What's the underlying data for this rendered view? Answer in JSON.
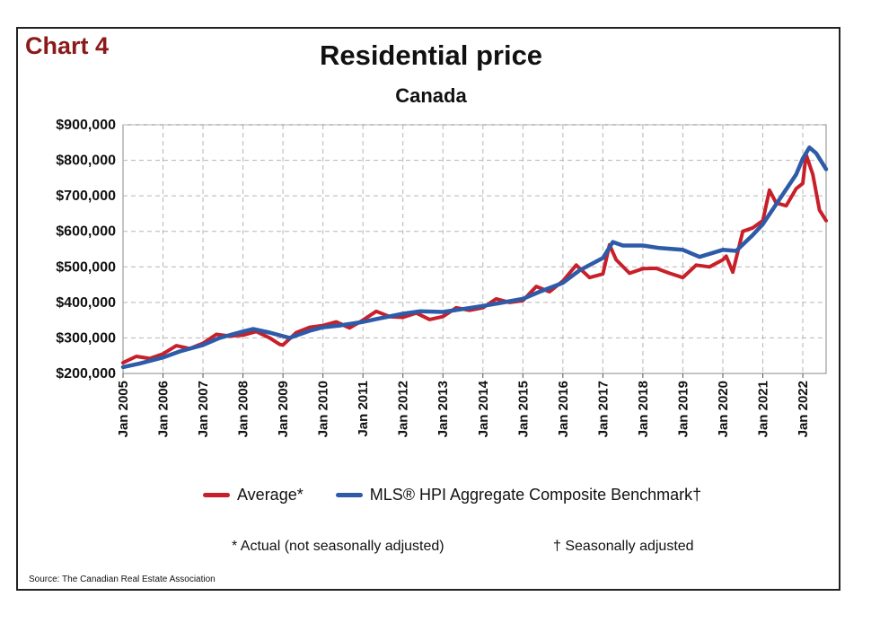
{
  "header": {
    "chart_label": "Chart 4"
  },
  "chart_data": {
    "type": "line",
    "title": "Residential price",
    "subtitle": "Canada",
    "xlabel": "",
    "ylabel": "",
    "ylim": [
      200000,
      900000
    ],
    "xlim": [
      "2005-01",
      "2022-08"
    ],
    "grid": true,
    "legend_position": "bottom",
    "y_tick_labels": [
      "$200,000",
      "$300,000",
      "$400,000",
      "$500,000",
      "$600,000",
      "$700,000",
      "$800,000",
      "$900,000"
    ],
    "y_tick_values": [
      200000,
      300000,
      400000,
      500000,
      600000,
      700000,
      800000,
      900000
    ],
    "x_tick_labels": [
      "Jan 2005",
      "Jan 2006",
      "Jan 2007",
      "Jan 2008",
      "Jan 2009",
      "Jan 2010",
      "Jan 2011",
      "Jan 2012",
      "Jan 2013",
      "Jan 2014",
      "Jan 2015",
      "Jan 2016",
      "Jan 2017",
      "Jan 2018",
      "Jan 2019",
      "Jan 2020",
      "Jan 2021",
      "Jan 2022"
    ],
    "series": [
      {
        "name": "Average*",
        "color": "#c8202a",
        "points": [
          [
            "2005-01",
            230000
          ],
          [
            "2005-05",
            248000
          ],
          [
            "2005-09",
            242000
          ],
          [
            "2006-01",
            255000
          ],
          [
            "2006-05",
            278000
          ],
          [
            "2006-09",
            270000
          ],
          [
            "2007-01",
            285000
          ],
          [
            "2007-05",
            310000
          ],
          [
            "2007-09",
            305000
          ],
          [
            "2008-01",
            308000
          ],
          [
            "2008-05",
            318000
          ],
          [
            "2008-09",
            300000
          ],
          [
            "2008-12",
            282000
          ],
          [
            "2009-01",
            280000
          ],
          [
            "2009-05",
            315000
          ],
          [
            "2009-09",
            330000
          ],
          [
            "2010-01",
            335000
          ],
          [
            "2010-05",
            345000
          ],
          [
            "2010-09",
            328000
          ],
          [
            "2011-01",
            350000
          ],
          [
            "2011-05",
            375000
          ],
          [
            "2011-09",
            360000
          ],
          [
            "2012-01",
            358000
          ],
          [
            "2012-05",
            370000
          ],
          [
            "2012-09",
            352000
          ],
          [
            "2013-01",
            360000
          ],
          [
            "2013-05",
            385000
          ],
          [
            "2013-09",
            378000
          ],
          [
            "2014-01",
            385000
          ],
          [
            "2014-05",
            410000
          ],
          [
            "2014-09",
            400000
          ],
          [
            "2015-01",
            405000
          ],
          [
            "2015-05",
            445000
          ],
          [
            "2015-09",
            430000
          ],
          [
            "2016-01",
            460000
          ],
          [
            "2016-05",
            505000
          ],
          [
            "2016-09",
            470000
          ],
          [
            "2017-01",
            480000
          ],
          [
            "2017-03",
            562000
          ],
          [
            "2017-05",
            520000
          ],
          [
            "2017-09",
            482000
          ],
          [
            "2018-01",
            495000
          ],
          [
            "2018-05",
            496000
          ],
          [
            "2018-09",
            482000
          ],
          [
            "2019-01",
            470000
          ],
          [
            "2019-05",
            505000
          ],
          [
            "2019-09",
            500000
          ],
          [
            "2020-01",
            520000
          ],
          [
            "2020-02",
            530000
          ],
          [
            "2020-04",
            485000
          ],
          [
            "2020-07",
            600000
          ],
          [
            "2020-10",
            610000
          ],
          [
            "2021-01",
            630000
          ],
          [
            "2021-03",
            716000
          ],
          [
            "2021-05",
            680000
          ],
          [
            "2021-08",
            672000
          ],
          [
            "2021-11",
            720000
          ],
          [
            "2022-01",
            735000
          ],
          [
            "2022-02",
            816000
          ],
          [
            "2022-04",
            760000
          ],
          [
            "2022-06",
            660000
          ],
          [
            "2022-08",
            630000
          ]
        ]
      },
      {
        "name": "MLS® HPI Aggregate Composite Benchmark†",
        "color": "#2e5ba8",
        "points": [
          [
            "2005-01",
            218000
          ],
          [
            "2005-06",
            228000
          ],
          [
            "2006-01",
            245000
          ],
          [
            "2006-06",
            262000
          ],
          [
            "2007-01",
            280000
          ],
          [
            "2007-06",
            300000
          ],
          [
            "2008-01",
            318000
          ],
          [
            "2008-04",
            325000
          ],
          [
            "2008-09",
            315000
          ],
          [
            "2009-03",
            300000
          ],
          [
            "2009-09",
            320000
          ],
          [
            "2010-01",
            330000
          ],
          [
            "2010-06",
            335000
          ],
          [
            "2011-01",
            345000
          ],
          [
            "2011-06",
            355000
          ],
          [
            "2012-01",
            368000
          ],
          [
            "2012-06",
            375000
          ],
          [
            "2013-01",
            373000
          ],
          [
            "2013-06",
            380000
          ],
          [
            "2014-01",
            390000
          ],
          [
            "2014-06",
            398000
          ],
          [
            "2015-01",
            410000
          ],
          [
            "2015-06",
            430000
          ],
          [
            "2016-01",
            455000
          ],
          [
            "2016-06",
            490000
          ],
          [
            "2017-01",
            525000
          ],
          [
            "2017-04",
            570000
          ],
          [
            "2017-07",
            560000
          ],
          [
            "2018-01",
            560000
          ],
          [
            "2018-06",
            553000
          ],
          [
            "2019-01",
            548000
          ],
          [
            "2019-06",
            528000
          ],
          [
            "2020-01",
            548000
          ],
          [
            "2020-05",
            545000
          ],
          [
            "2020-10",
            590000
          ],
          [
            "2021-01",
            620000
          ],
          [
            "2021-06",
            690000
          ],
          [
            "2021-11",
            760000
          ],
          [
            "2022-01",
            805000
          ],
          [
            "2022-03",
            836000
          ],
          [
            "2022-05",
            820000
          ],
          [
            "2022-08",
            775000
          ]
        ]
      }
    ],
    "notes": [
      "* Actual (not seasonally adjusted)",
      "† Seasonally adjusted"
    ],
    "source": "Source: The Canadian Real Estate Association"
  }
}
